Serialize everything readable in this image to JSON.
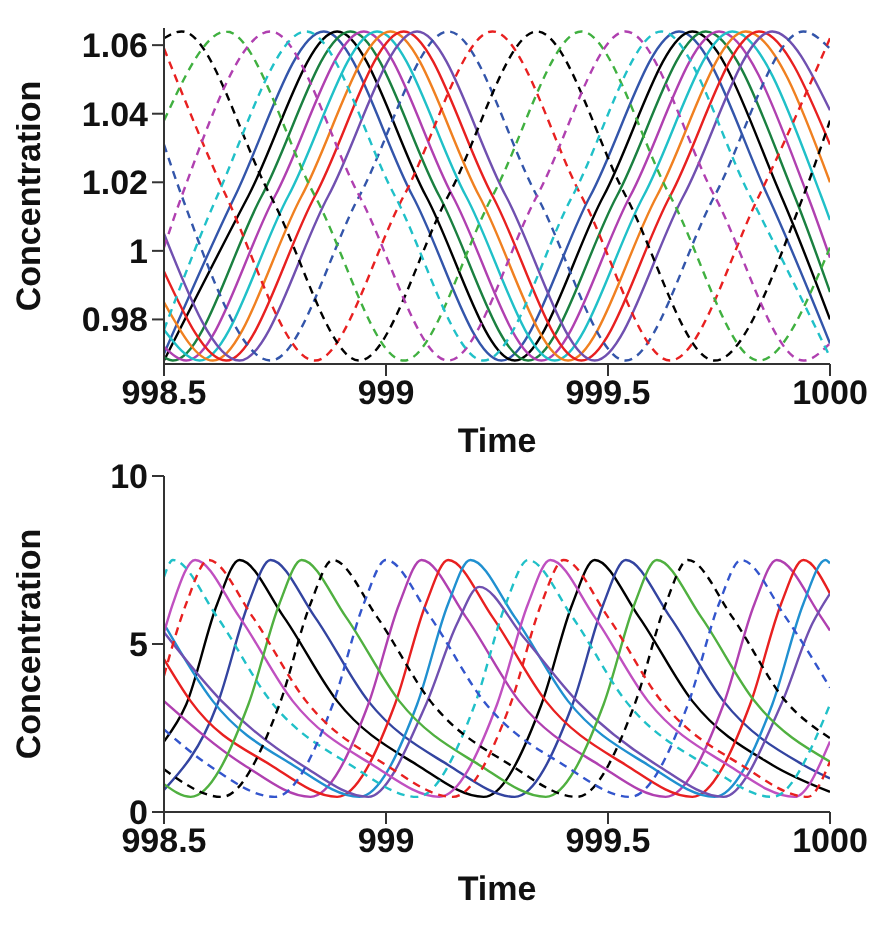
{
  "chart_data": [
    {
      "type": "line",
      "xlabel": "Time",
      "ylabel": "Concentration",
      "xlim": [
        998.5,
        1000
      ],
      "xticks": [
        998.5,
        999,
        999.5,
        1000
      ],
      "ylim": [
        0.967,
        1.065
      ],
      "yticks": [
        0.98,
        1,
        1.02,
        1.04,
        1.06
      ],
      "grid": false,
      "series": [
        {
          "color": "#3355aa",
          "line_style": "solid",
          "x": [
            998.5,
            998.66,
            998.86,
            999.06,
            999.26,
            999.46,
            999.66,
            999.86,
            1000
          ],
          "values": [
            0.97,
            1.016,
            1.064,
            1.016,
            0.968,
            1.016,
            1.064,
            1.016,
            0.973
          ]
        },
        {
          "color": "#000000",
          "line_style": "solid",
          "x": [
            998.5,
            998.69,
            998.89,
            999.09,
            999.29,
            999.49,
            999.69,
            999.89,
            1000
          ],
          "values": [
            0.968,
            1.016,
            1.064,
            1.016,
            0.968,
            1.016,
            1.064,
            1.016,
            0.98
          ]
        },
        {
          "color": "#1a8040",
          "line_style": "solid",
          "x": [
            998.5,
            998.52,
            998.72,
            998.92,
            999.12,
            999.32,
            999.52,
            999.72,
            999.92,
            1000
          ],
          "values": [
            0.969,
            0.968,
            1.016,
            1.064,
            1.016,
            0.968,
            1.016,
            1.064,
            1.016,
            0.988
          ]
        },
        {
          "color": "#b040b0",
          "line_style": "solid",
          "x": [
            998.5,
            998.55,
            998.75,
            998.95,
            999.15,
            999.35,
            999.55,
            999.75,
            999.95,
            1000
          ],
          "values": [
            0.972,
            0.968,
            1.016,
            1.064,
            1.016,
            0.968,
            1.016,
            1.064,
            1.016,
            0.998
          ]
        },
        {
          "color": "#20c0c8",
          "line_style": "solid",
          "x": [
            998.5,
            998.58,
            998.78,
            998.98,
            999.18,
            999.38,
            999.58,
            999.78,
            999.98,
            1000
          ],
          "values": [
            0.977,
            0.968,
            1.016,
            1.064,
            1.016,
            0.968,
            1.016,
            1.064,
            1.016,
            1.009
          ]
        },
        {
          "color": "#f08020",
          "line_style": "solid",
          "x": [
            998.5,
            998.61,
            998.81,
            999.01,
            999.21,
            999.41,
            999.61,
            999.81,
            1000
          ],
          "values": [
            0.985,
            0.968,
            1.016,
            1.064,
            1.016,
            0.968,
            1.016,
            1.064,
            1.02
          ]
        },
        {
          "color": "#e82020",
          "line_style": "solid",
          "x": [
            998.5,
            998.64,
            998.84,
            999.04,
            999.24,
            999.44,
            999.64,
            999.84,
            1000
          ],
          "values": [
            0.994,
            0.968,
            1.016,
            1.064,
            1.016,
            0.968,
            1.016,
            1.064,
            1.031
          ]
        },
        {
          "color": "#7050b0",
          "line_style": "solid",
          "x": [
            998.5,
            998.67,
            998.87,
            999.07,
            999.27,
            999.47,
            999.67,
            999.87,
            1000
          ],
          "values": [
            1.005,
            0.968,
            1.016,
            1.064,
            1.016,
            0.968,
            1.016,
            1.064,
            1.041
          ]
        },
        {
          "color": "#3355aa",
          "line_style": "dashed",
          "x": [
            998.5,
            998.54,
            998.74,
            998.94,
            999.14,
            999.34,
            999.54,
            999.74,
            999.94,
            1000
          ],
          "values": [
            1.031,
            1.016,
            0.968,
            1.016,
            1.064,
            1.016,
            0.968,
            1.016,
            1.064,
            1.059
          ]
        },
        {
          "color": "#e82020",
          "line_style": "dashed",
          "x": [
            998.5,
            998.64,
            998.84,
            999.04,
            999.24,
            999.44,
            999.64,
            999.84,
            1000
          ],
          "values": [
            1.059,
            1.016,
            0.968,
            1.016,
            1.064,
            1.016,
            0.968,
            1.016,
            1.062
          ]
        },
        {
          "color": "#000000",
          "line_style": "dashed",
          "x": [
            998.5,
            998.54,
            998.74,
            998.94,
            999.14,
            999.34,
            999.54,
            999.74,
            999.94,
            1000
          ],
          "values": [
            1.062,
            1.064,
            1.016,
            0.968,
            1.016,
            1.064,
            1.016,
            0.968,
            1.016,
            1.038
          ]
        },
        {
          "color": "#40b040",
          "line_style": "dashed",
          "x": [
            998.5,
            998.64,
            998.84,
            999.04,
            999.24,
            999.44,
            999.64,
            999.84,
            1000
          ],
          "values": [
            1.038,
            1.064,
            1.016,
            0.968,
            1.016,
            1.064,
            1.016,
            0.968,
            1.001
          ]
        },
        {
          "color": "#b040b0",
          "line_style": "dashed",
          "x": [
            998.5,
            998.54,
            998.74,
            998.94,
            999.14,
            999.34,
            999.54,
            999.74,
            999.94,
            1000
          ],
          "values": [
            1.001,
            1.016,
            1.064,
            1.016,
            0.968,
            1.016,
            1.064,
            1.016,
            0.968,
            0.973
          ]
        },
        {
          "color": "#20c0c8",
          "line_style": "dashed",
          "x": [
            998.5,
            998.62,
            998.82,
            999.02,
            999.22,
            999.42,
            999.62,
            999.82,
            1000
          ],
          "values": [
            0.977,
            1.016,
            1.064,
            1.016,
            0.968,
            1.016,
            1.064,
            1.016,
            0.969
          ]
        }
      ]
    },
    {
      "type": "line",
      "xlabel": "Time",
      "ylabel": "Concentration",
      "xlim": [
        998.5,
        1000
      ],
      "xticks": [
        998.5,
        999,
        999.5,
        1000
      ],
      "ylim": [
        0,
        10
      ],
      "yticks": [
        0,
        5,
        10
      ],
      "grid": false,
      "series": [
        {
          "color": "#000000",
          "line_style": "solid",
          "x": [
            998.5,
            998.55,
            998.62,
            998.67,
            998.77,
            998.89,
            999.07,
            999.22,
            999.35,
            999.42,
            999.47,
            999.57,
            999.69,
            999.87,
            1000
          ],
          "values": [
            2.1,
            3.2,
            6.2,
            7.5,
            5.8,
            3.3,
            1.4,
            0.45,
            3.2,
            6.2,
            7.5,
            5.8,
            3.3,
            1.4,
            0.6
          ]
        },
        {
          "color": "#3344a0",
          "line_style": "solid",
          "x": [
            998.5,
            998.62,
            998.69,
            998.74,
            998.84,
            998.96,
            999.14,
            999.29,
            999.42,
            999.49,
            999.54,
            999.64,
            999.76,
            999.94,
            1000
          ],
          "values": [
            0.66,
            3.2,
            6.2,
            7.5,
            5.8,
            3.3,
            1.4,
            0.45,
            3.2,
            6.2,
            7.5,
            5.8,
            3.3,
            1.4,
            1.0
          ]
        },
        {
          "color": "#b040b0",
          "line_style": "solid",
          "x": [
            998.5,
            998.68,
            998.83,
            998.96,
            999.03,
            999.08,
            999.18,
            999.3,
            999.48,
            999.63,
            999.76,
            999.83,
            999.88,
            999.98,
            1000
          ],
          "values": [
            3.3,
            1.4,
            0.45,
            3.2,
            6.2,
            7.5,
            5.8,
            3.3,
            1.4,
            0.45,
            3.2,
            6.2,
            7.5,
            5.8,
            5.4
          ]
        },
        {
          "color": "#e82020",
          "line_style": "solid",
          "x": [
            998.5,
            998.56,
            998.74,
            998.89,
            999.02,
            999.09,
            999.14,
            999.24,
            999.36,
            999.54,
            999.69,
            999.82,
            999.89,
            999.94,
            1000
          ],
          "values": [
            4.55,
            3.3,
            1.4,
            0.45,
            3.2,
            6.2,
            7.5,
            5.8,
            3.3,
            1.4,
            0.45,
            3.2,
            6.2,
            7.5,
            6.5
          ]
        },
        {
          "color": "#2090d0",
          "line_style": "solid",
          "x": [
            998.5,
            998.61,
            998.79,
            998.94,
            999.07,
            999.14,
            999.19,
            999.29,
            999.41,
            999.59,
            999.74,
            999.87,
            999.94,
            999.99,
            1000
          ],
          "values": [
            5.6,
            3.3,
            1.4,
            0.45,
            3.2,
            6.2,
            7.5,
            5.8,
            3.3,
            1.4,
            0.45,
            3.2,
            6.2,
            7.5,
            7.4
          ]
        },
        {
          "color": "#7050b0",
          "line_style": "solid",
          "x": [
            998.5,
            998.63,
            998.81,
            998.96,
            999.09,
            999.16,
            999.21,
            999.31,
            999.43,
            999.61,
            999.76,
            999.89,
            999.96,
            1000
          ],
          "values": [
            5.35,
            3.3,
            1.4,
            0.45,
            3.2,
            5.6,
            6.7,
            5.2,
            3.3,
            1.4,
            0.45,
            3.2,
            5.6,
            6.5
          ]
        },
        {
          "color": "#c050c0",
          "line_style": "solid",
          "x": [
            998.5,
            998.52,
            998.57,
            998.67,
            998.79,
            998.97,
            999.12,
            999.25,
            999.32,
            999.37,
            999.47,
            999.59,
            999.77,
            999.92,
            1000
          ],
          "values": [
            5.34,
            6.2,
            7.5,
            5.8,
            3.3,
            1.4,
            0.45,
            3.2,
            6.2,
            7.5,
            5.8,
            3.3,
            1.4,
            0.45,
            2.1
          ]
        },
        {
          "color": "#50b040",
          "line_style": "solid",
          "x": [
            998.5,
            998.56,
            998.69,
            998.76,
            998.81,
            998.91,
            999.03,
            999.21,
            999.36,
            999.49,
            999.56,
            999.61,
            999.71,
            999.83,
            1000
          ],
          "values": [
            0.83,
            0.45,
            3.2,
            6.2,
            7.5,
            5.8,
            3.3,
            1.4,
            0.45,
            3.2,
            6.2,
            7.5,
            5.8,
            3.3,
            1.5
          ]
        },
        {
          "color": "#20c0c8",
          "line_style": "dashed",
          "x": [
            998.5,
            998.52,
            998.62,
            998.74,
            998.92,
            999.07,
            999.2,
            999.27,
            999.32,
            999.42,
            999.54,
            999.72,
            999.87,
            1000
          ],
          "values": [
            7.0,
            7.5,
            5.8,
            3.3,
            1.4,
            0.45,
            3.2,
            6.2,
            7.5,
            5.8,
            3.3,
            1.4,
            0.45,
            3.2
          ]
        },
        {
          "color": "#000000",
          "line_style": "dashed",
          "x": [
            998.5,
            998.63,
            998.76,
            998.83,
            998.88,
            998.98,
            999.1,
            999.28,
            999.43,
            999.56,
            999.63,
            999.68,
            999.78,
            999.9,
            1000
          ],
          "values": [
            1.27,
            0.45,
            3.2,
            6.2,
            7.5,
            5.8,
            3.3,
            1.4,
            0.45,
            3.2,
            6.2,
            7.5,
            5.8,
            3.3,
            2.2
          ]
        },
        {
          "color": "#3355cc",
          "line_style": "dashed",
          "x": [
            998.5,
            998.6,
            998.75,
            998.88,
            998.95,
            999.0,
            999.1,
            999.22,
            999.4,
            999.55,
            999.68,
            999.75,
            999.8,
            999.9,
            1000
          ],
          "values": [
            2.46,
            1.4,
            0.45,
            3.2,
            6.2,
            7.5,
            5.8,
            3.3,
            1.4,
            0.45,
            3.2,
            6.2,
            7.5,
            5.8,
            3.7
          ]
        },
        {
          "color": "#e82020",
          "line_style": "dashed",
          "x": [
            998.5,
            998.55,
            998.6,
            998.7,
            998.82,
            999.0,
            999.15,
            999.28,
            999.35,
            999.4,
            999.5,
            999.62,
            999.8,
            999.95,
            1000
          ],
          "values": [
            4.06,
            6.2,
            7.5,
            5.8,
            3.3,
            1.4,
            0.45,
            3.2,
            6.2,
            7.5,
            5.8,
            3.3,
            1.4,
            0.45,
            1.5
          ]
        }
      ]
    }
  ]
}
